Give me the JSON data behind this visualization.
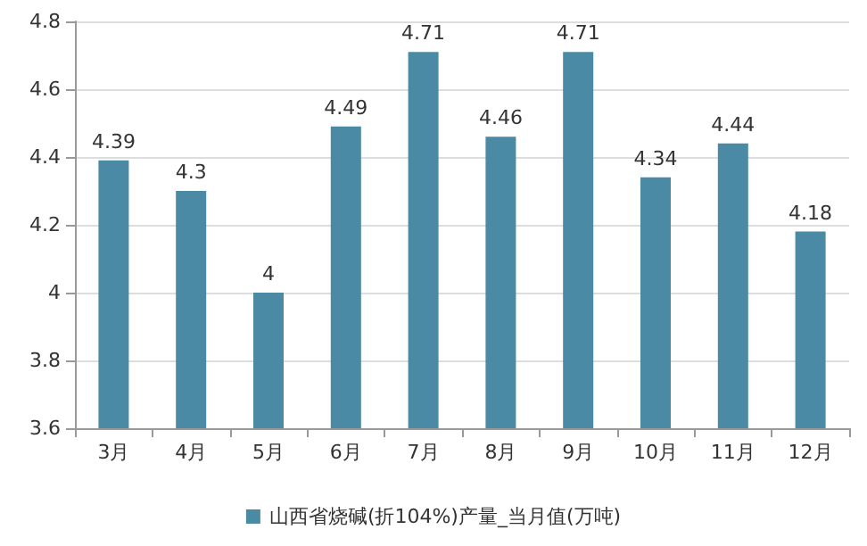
{
  "chart_data": {
    "type": "bar",
    "categories": [
      "3月",
      "4月",
      "5月",
      "6月",
      "7月",
      "8月",
      "9月",
      "10月",
      "11月",
      "12月"
    ],
    "series": [
      {
        "name": "山西省烧碱(折104%)产量_当月值(万吨)",
        "color": "#4a8aa5",
        "values": [
          4.39,
          4.3,
          4,
          4.49,
          4.71,
          4.46,
          4.71,
          4.34,
          4.44,
          4.18
        ]
      }
    ],
    "ylim": [
      3.6,
      4.8
    ],
    "yticks": [
      3.6,
      3.8,
      4,
      4.2,
      4.4,
      4.6,
      4.8
    ],
    "grid": "y",
    "legend": "bottom",
    "data_labels": true
  }
}
